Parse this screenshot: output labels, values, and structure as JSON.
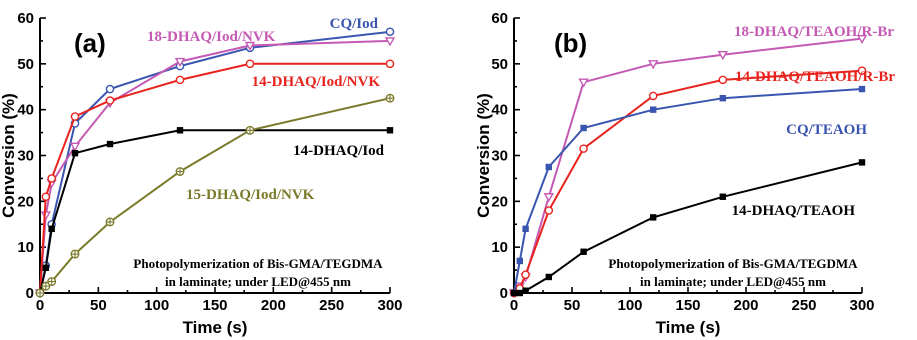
{
  "chart_data": [
    {
      "type": "line",
      "panel_label": "(a)",
      "xlabel": "Time (s)",
      "ylabel": "Conversion (%)",
      "xlim": [
        0,
        300
      ],
      "ylim": [
        0,
        60
      ],
      "xticks": [
        0,
        50,
        100,
        150,
        200,
        250,
        300
      ],
      "yticks": [
        0,
        10,
        20,
        30,
        40,
        50,
        60
      ],
      "grid": false,
      "note": [
        "Photopolymerization of Bis-GMA/TEGDMA",
        "in laminate; under LED@455 nm"
      ],
      "series": [
        {
          "name": "CQ/Iod",
          "color": "#3a55b0",
          "marker": "circle-open",
          "x": [
            0,
            5,
            10,
            30,
            60,
            120,
            180,
            300
          ],
          "y": [
            0,
            6,
            15,
            37,
            44.5,
            49.5,
            53.5,
            57
          ]
        },
        {
          "name": "18-DHAQ/Iod/NVK",
          "color": "#c45ab3",
          "marker": "triangle-down-open",
          "x": [
            0,
            5,
            10,
            30,
            60,
            120,
            180,
            300
          ],
          "y": [
            0,
            17,
            24,
            32,
            41.5,
            50.5,
            54,
            55
          ]
        },
        {
          "name": "14-DHAQ/Iod/NVK",
          "color": "#e8231e",
          "marker": "circle-open",
          "x": [
            0,
            5,
            10,
            30,
            60,
            120,
            180,
            300
          ],
          "y": [
            0,
            21,
            25,
            38.5,
            42,
            46.5,
            50,
            50
          ]
        },
        {
          "name": "14-DHAQ/Iod",
          "color": "#000000",
          "marker": "square",
          "x": [
            0,
            5,
            10,
            30,
            60,
            120,
            180,
            300
          ],
          "y": [
            0,
            5.5,
            14,
            30.5,
            32.5,
            35.5,
            35.5,
            35.5
          ]
        },
        {
          "name": "15-DHAQ/Iod/NVK",
          "color": "#7a7a2a",
          "marker": "circle-cross",
          "x": [
            0,
            5,
            10,
            30,
            60,
            120,
            180,
            300
          ],
          "y": [
            0,
            1.5,
            2.5,
            8.5,
            15.5,
            26.5,
            35.5,
            42.5
          ]
        }
      ]
    },
    {
      "type": "line",
      "panel_label": "(b)",
      "xlabel": "Time (s)",
      "ylabel": "Conversion (%)",
      "xlim": [
        0,
        300
      ],
      "ylim": [
        0,
        60
      ],
      "xticks": [
        0,
        50,
        100,
        150,
        200,
        250,
        300
      ],
      "yticks": [
        0,
        10,
        20,
        30,
        40,
        50,
        60
      ],
      "grid": false,
      "note": [
        "Photopolymerization of Bis-GMA/TEGDMA",
        "in laminate; under LED@455 nm"
      ],
      "series": [
        {
          "name": "18-DHAQ/TEAOH/R-Br",
          "color": "#c45ab3",
          "marker": "triangle-down-open",
          "x": [
            0,
            5,
            10,
            30,
            60,
            120,
            180,
            300
          ],
          "y": [
            0,
            1.5,
            3.5,
            21,
            46,
            50,
            52,
            55.5
          ]
        },
        {
          "name": "14-DHAQ/TEAOH/R-Br",
          "color": "#e8231e",
          "marker": "circle-open",
          "x": [
            0,
            5,
            10,
            30,
            60,
            120,
            180,
            300
          ],
          "y": [
            0,
            1,
            4,
            18,
            31.5,
            43,
            46.5,
            48.5
          ]
        },
        {
          "name": "CQ/TEAOH",
          "color": "#3a55b0",
          "marker": "square",
          "x": [
            0,
            5,
            10,
            30,
            60,
            120,
            180,
            300
          ],
          "y": [
            0,
            7,
            14,
            27.5,
            36,
            40,
            42.5,
            44.5
          ]
        },
        {
          "name": "14-DHAQ/TEAOH",
          "color": "#000000",
          "marker": "square",
          "x": [
            0,
            5,
            10,
            30,
            60,
            120,
            180,
            300
          ],
          "y": [
            0,
            0,
            0.5,
            3.5,
            9,
            16.5,
            21,
            28.5
          ]
        }
      ]
    }
  ]
}
